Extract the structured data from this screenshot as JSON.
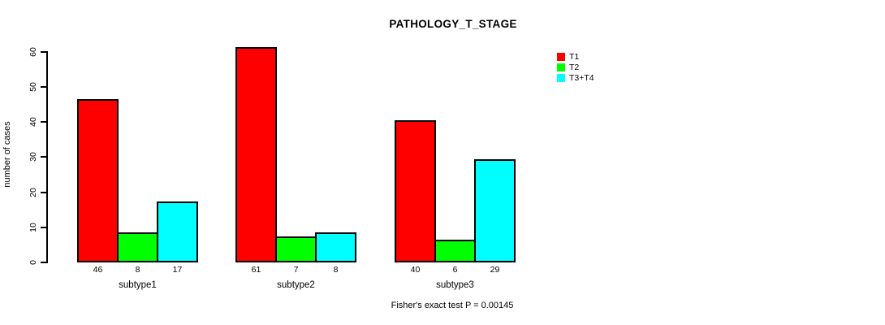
{
  "chart_data": {
    "type": "bar",
    "title": "PATHOLOGY_T_STAGE",
    "ylabel": "number of cases",
    "xlabel": "",
    "categories": [
      "subtype1",
      "subtype2",
      "subtype3"
    ],
    "series": [
      {
        "name": "T1",
        "color": "#FF0000",
        "values": [
          46,
          61,
          40
        ]
      },
      {
        "name": "T2",
        "color": "#00FF00",
        "values": [
          8,
          7,
          6
        ]
      },
      {
        "name": "T3+T4",
        "color": "#00FFFF",
        "values": [
          17,
          8,
          29
        ]
      }
    ],
    "bar_value_labels": [
      [
        46,
        8,
        17
      ],
      [
        61,
        7,
        8
      ],
      [
        40,
        6,
        29
      ]
    ],
    "ylim": [
      0,
      60
    ],
    "yticks": [
      0,
      10,
      20,
      30,
      40,
      50,
      60
    ],
    "grid": false,
    "legend_position": "top-right",
    "bar_border_color": "#000000",
    "axis_color": "#000000",
    "background_color": "#FFFFFF",
    "footnote": "Fisher's exact test P = 0.00145"
  }
}
